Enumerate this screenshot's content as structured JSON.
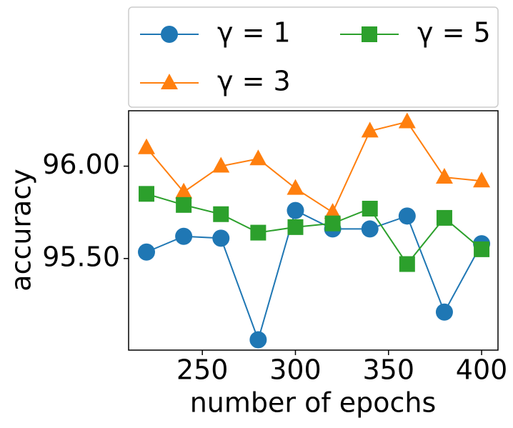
{
  "chart_data": {
    "type": "line",
    "x_label": "number of epochs",
    "y_label": "accuracy",
    "x": [
      220,
      240,
      260,
      280,
      300,
      320,
      340,
      360,
      380,
      400
    ],
    "xlim": [
      210.4,
      408.8
    ],
    "xticks": [
      250,
      300,
      350,
      400
    ],
    "ylim": [
      95.004,
      96.3
    ],
    "yticks": [
      {
        "value": 95.5,
        "label": "95.50"
      },
      {
        "value": 96.0,
        "label": "96.00"
      }
    ],
    "series": [
      {
        "name": "γ = 1",
        "color": "#1f77b4",
        "marker": "circle",
        "values": [
          95.535,
          95.62,
          95.61,
          95.06,
          95.76,
          95.66,
          95.66,
          95.73,
          95.21,
          95.58
        ]
      },
      {
        "name": "γ = 3",
        "color": "#ff7f0e",
        "marker": "triangle",
        "values": [
          96.1,
          95.86,
          96.0,
          96.04,
          95.88,
          95.75,
          96.19,
          96.24,
          95.94,
          95.92
        ]
      },
      {
        "name": "γ = 5",
        "color": "#2ca02c",
        "marker": "square",
        "values": [
          95.85,
          95.79,
          95.74,
          95.64,
          95.67,
          95.69,
          95.77,
          95.47,
          95.72,
          95.55
        ]
      }
    ]
  }
}
